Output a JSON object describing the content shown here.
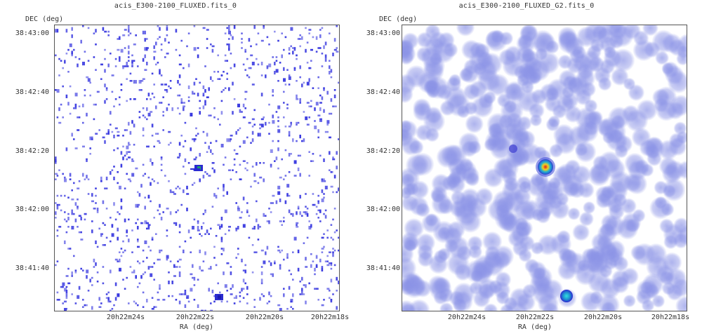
{
  "panels": [
    {
      "title": "acis_E300-2100_FLUXED.fits_0",
      "ylabel": "DEC (deg)",
      "xlabel": "RA (deg)",
      "yticks": [
        "38:43:00",
        "38:42:40",
        "38:42:20",
        "38:42:00",
        "38:41:40"
      ],
      "xticks": [
        "20h22m24s",
        "20h22m22s",
        "20h22m20s",
        "20h22m18s"
      ],
      "style": "raw-events"
    },
    {
      "title": "acis_E300-2100_FLUXED_G2.fits_0",
      "ylabel": "DEC (deg)",
      "xlabel": "RA (deg)",
      "yticks": [
        "38:43:00",
        "38:42:40",
        "38:42:20",
        "38:42:00",
        "38:41:40"
      ],
      "xticks": [
        "20h22m24s",
        "20h22m22s",
        "20h22m20s",
        "20h22m18s"
      ],
      "style": "smoothed"
    }
  ],
  "colors": {
    "events": "#3a3ae0",
    "smooth": "#8a92e6",
    "source_core": "#e0201a",
    "source_mid": "#f0d020",
    "source_outer": "#20b0d0"
  }
}
